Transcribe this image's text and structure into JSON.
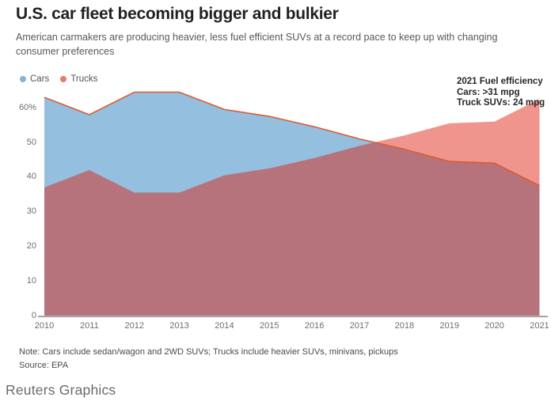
{
  "header": {
    "title": "U.S. car fleet becoming bigger and bulkier",
    "subtitle": "American carmakers are producing heavier, less fuel efficient SUVs at a record pace to keep up with changing consumer preferences"
  },
  "legend": {
    "items": [
      {
        "label": "Cars",
        "color": "#85b3d9"
      },
      {
        "label": "Trucks",
        "color": "#e8796b"
      }
    ]
  },
  "annotation": {
    "lines": [
      "2021 Fuel efficiency",
      "Cars: >31 mpg",
      "Truck SUVs: 24 mpg"
    ]
  },
  "chart_data": {
    "type": "area",
    "description": "Overlapping (non-stacked) area chart of share of U.S. fleet production, percent",
    "x": [
      2010,
      2011,
      2012,
      2013,
      2014,
      2015,
      2016,
      2017,
      2018,
      2019,
      2020,
      2021
    ],
    "series": [
      {
        "name": "Cars",
        "values": [
          63,
          58,
          64.5,
          64.5,
          59.5,
          57.5,
          54.5,
          51,
          48,
          44.5,
          44,
          37.5
        ]
      },
      {
        "name": "Trucks",
        "values": [
          37,
          42,
          35.5,
          35.5,
          40.5,
          42.5,
          45.5,
          49,
          52,
          55.5,
          56,
          62.5
        ]
      }
    ],
    "ylim": [
      0,
      60
    ],
    "yticks": [
      0,
      10,
      20,
      30,
      40,
      50,
      60
    ],
    "ytick_labels": [
      "0",
      "10",
      "20",
      "30",
      "40",
      "50",
      "60%"
    ],
    "grid": false,
    "legend_position": "top-left",
    "colors": {
      "cars_fill": "#94bfdf",
      "trucks_fill": "rgba(223,30,12,0.47)",
      "cars_line": "#dc5a32",
      "axis_line": "#9b9b9b"
    }
  },
  "note": "Note: Cars include sedan/wagon and 2WD SUVs; Trucks include heavier SUVs, minivans, pickups",
  "source": "Source: EPA",
  "brand": "Reuters Graphics"
}
